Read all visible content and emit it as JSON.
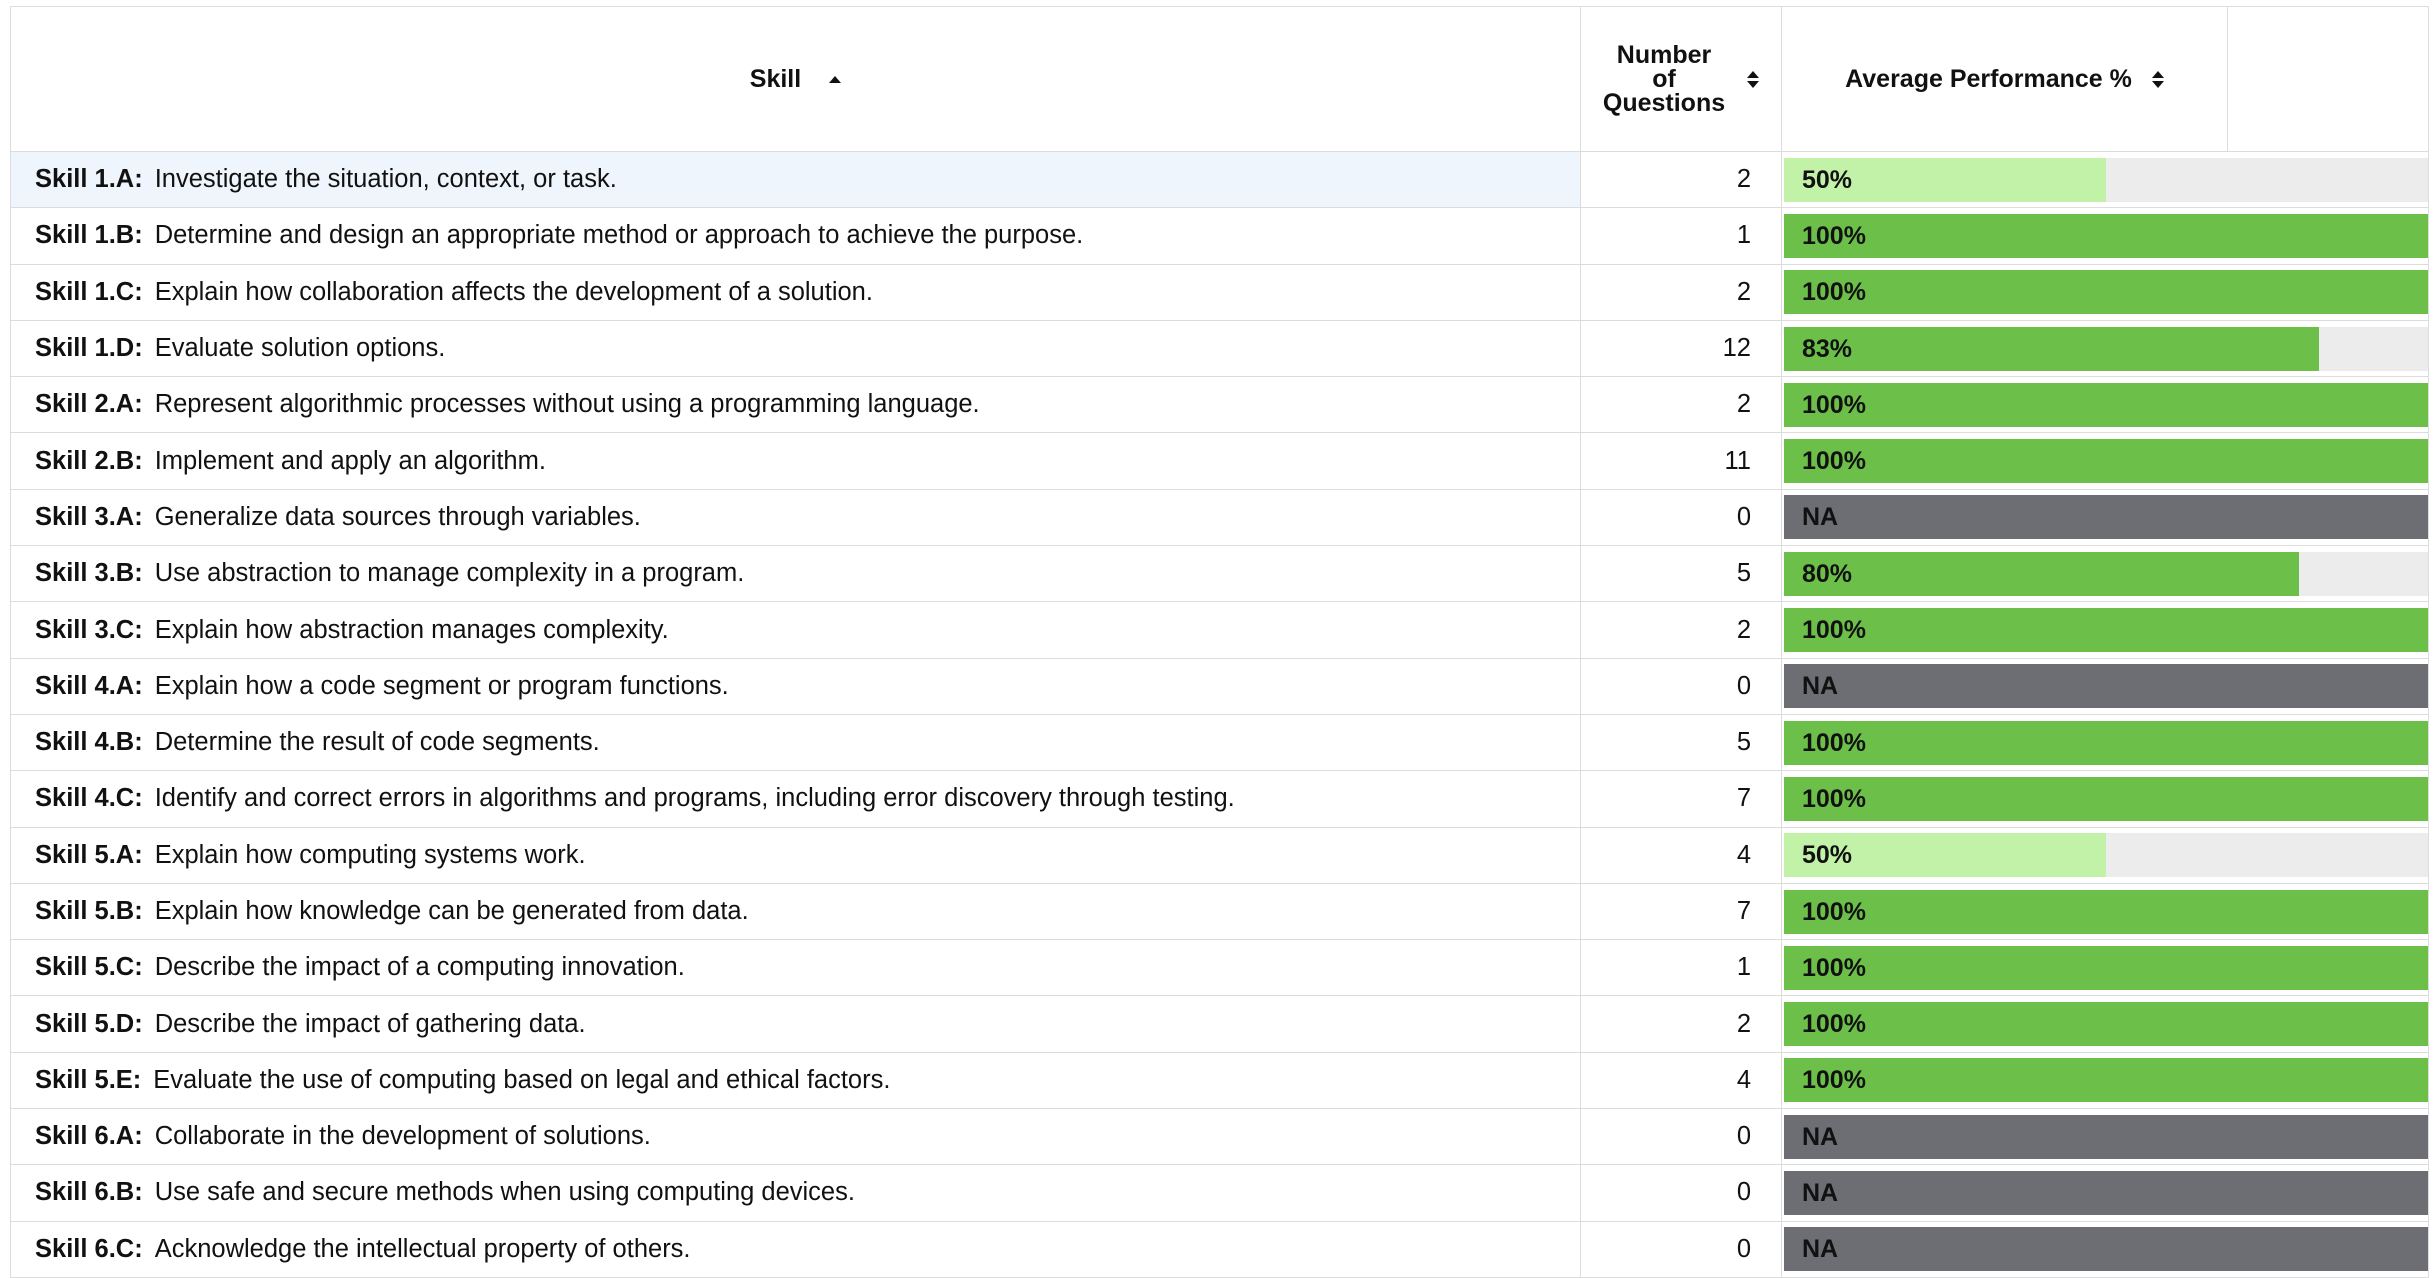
{
  "headers": {
    "skill": "Skill",
    "num_line1": "Number",
    "num_line2": "of",
    "num_line3": "Questions",
    "perf": "Average Performance %"
  },
  "colors": {
    "full": "#6cc04a",
    "partial": "#c2f2a8",
    "na": "#6d6e73",
    "track": "#ececec",
    "highlight_row": "#eef5fd"
  },
  "rows": [
    {
      "code": "Skill 1.A:",
      "desc": "Investigate the situation, context, or task.",
      "num": "2",
      "perf": "50%",
      "fraction": 0.5,
      "status": "partial"
    },
    {
      "code": "Skill 1.B:",
      "desc": "Determine and design an appropriate method or approach to achieve the purpose.",
      "num": "1",
      "perf": "100%",
      "fraction": 1.0,
      "status": "full"
    },
    {
      "code": "Skill 1.C:",
      "desc": "Explain how collaboration affects the development of a solution.",
      "num": "2",
      "perf": "100%",
      "fraction": 1.0,
      "status": "full"
    },
    {
      "code": "Skill 1.D:",
      "desc": "Evaluate solution options.",
      "num": "12",
      "perf": "83%",
      "fraction": 0.83,
      "status": "full"
    },
    {
      "code": "Skill 2.A:",
      "desc": "Represent algorithmic processes without using a programming language.",
      "num": "2",
      "perf": "100%",
      "fraction": 1.0,
      "status": "full"
    },
    {
      "code": "Skill 2.B:",
      "desc": "Implement and apply an algorithm.",
      "num": "11",
      "perf": "100%",
      "fraction": 1.0,
      "status": "full"
    },
    {
      "code": "Skill 3.A:",
      "desc": "Generalize data sources through variables.",
      "num": "0",
      "perf": "NA",
      "fraction": 1.0,
      "status": "na"
    },
    {
      "code": "Skill 3.B:",
      "desc": "Use abstraction to manage complexity in a program.",
      "num": "5",
      "perf": "80%",
      "fraction": 0.8,
      "status": "full"
    },
    {
      "code": "Skill 3.C:",
      "desc": "Explain how abstraction manages complexity.",
      "num": "2",
      "perf": "100%",
      "fraction": 1.0,
      "status": "full"
    },
    {
      "code": "Skill 4.A:",
      "desc": "Explain how a code segment or program functions.",
      "num": "0",
      "perf": "NA",
      "fraction": 1.0,
      "status": "na"
    },
    {
      "code": "Skill 4.B:",
      "desc": "Determine the result of code segments.",
      "num": "5",
      "perf": "100%",
      "fraction": 1.0,
      "status": "full"
    },
    {
      "code": "Skill 4.C:",
      "desc": "Identify and correct errors in algorithms and programs, including error discovery through testing.",
      "num": "7",
      "perf": "100%",
      "fraction": 1.0,
      "status": "full"
    },
    {
      "code": "Skill 5.A:",
      "desc": "Explain how computing systems work.",
      "num": "4",
      "perf": "50%",
      "fraction": 0.5,
      "status": "partial"
    },
    {
      "code": "Skill 5.B:",
      "desc": "Explain how knowledge can be generated from data.",
      "num": "7",
      "perf": "100%",
      "fraction": 1.0,
      "status": "full"
    },
    {
      "code": "Skill 5.C:",
      "desc": "Describe the impact of a computing innovation.",
      "num": "1",
      "perf": "100%",
      "fraction": 1.0,
      "status": "full"
    },
    {
      "code": "Skill 5.D:",
      "desc": "Describe the impact of gathering data.",
      "num": "2",
      "perf": "100%",
      "fraction": 1.0,
      "status": "full"
    },
    {
      "code": "Skill 5.E:",
      "desc": "Evaluate the use of computing based on legal and ethical factors.",
      "num": "4",
      "perf": "100%",
      "fraction": 1.0,
      "status": "full"
    },
    {
      "code": "Skill 6.A:",
      "desc": "Collaborate in the development of solutions.",
      "num": "0",
      "perf": "NA",
      "fraction": 1.0,
      "status": "na"
    },
    {
      "code": "Skill 6.B:",
      "desc": "Use safe and secure methods when using computing devices.",
      "num": "0",
      "perf": "NA",
      "fraction": 1.0,
      "status": "na"
    },
    {
      "code": "Skill 6.C:",
      "desc": "Acknowledge the intellectual property of others.",
      "num": "0",
      "perf": "NA",
      "fraction": 1.0,
      "status": "na"
    }
  ]
}
